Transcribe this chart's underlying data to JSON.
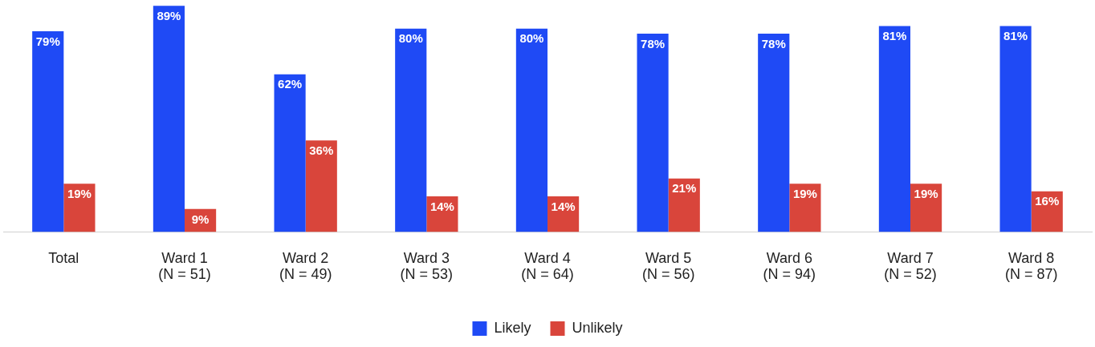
{
  "chart_data": {
    "type": "bar",
    "categories": [
      "Total",
      "Ward 1\n(N = 51)",
      "Ward 2\n(N = 49)",
      "Ward 3\n(N = 53)",
      "Ward 4\n(N = 64)",
      "Ward 5\n(N = 56)",
      "Ward 6\n(N = 94)",
      "Ward 7\n(N = 52)",
      "Ward 8\n(N = 87)"
    ],
    "series": [
      {
        "name": "Likely",
        "color": "#1f4af5",
        "values": [
          79,
          89,
          62,
          80,
          80,
          78,
          78,
          81,
          81
        ],
        "value_labels": [
          "79%",
          "89%",
          "62%",
          "80%",
          "80%",
          "78%",
          "78%",
          "81%",
          "81%"
        ]
      },
      {
        "name": "Unlikely",
        "color": "#d9453b",
        "values": [
          19,
          9,
          36,
          14,
          14,
          21,
          19,
          19,
          16
        ],
        "value_labels": [
          "19%",
          "9%",
          "36%",
          "14%",
          "14%",
          "21%",
          "19%",
          "19%",
          "16%"
        ]
      }
    ],
    "legend": "bottom",
    "grid": false
  }
}
